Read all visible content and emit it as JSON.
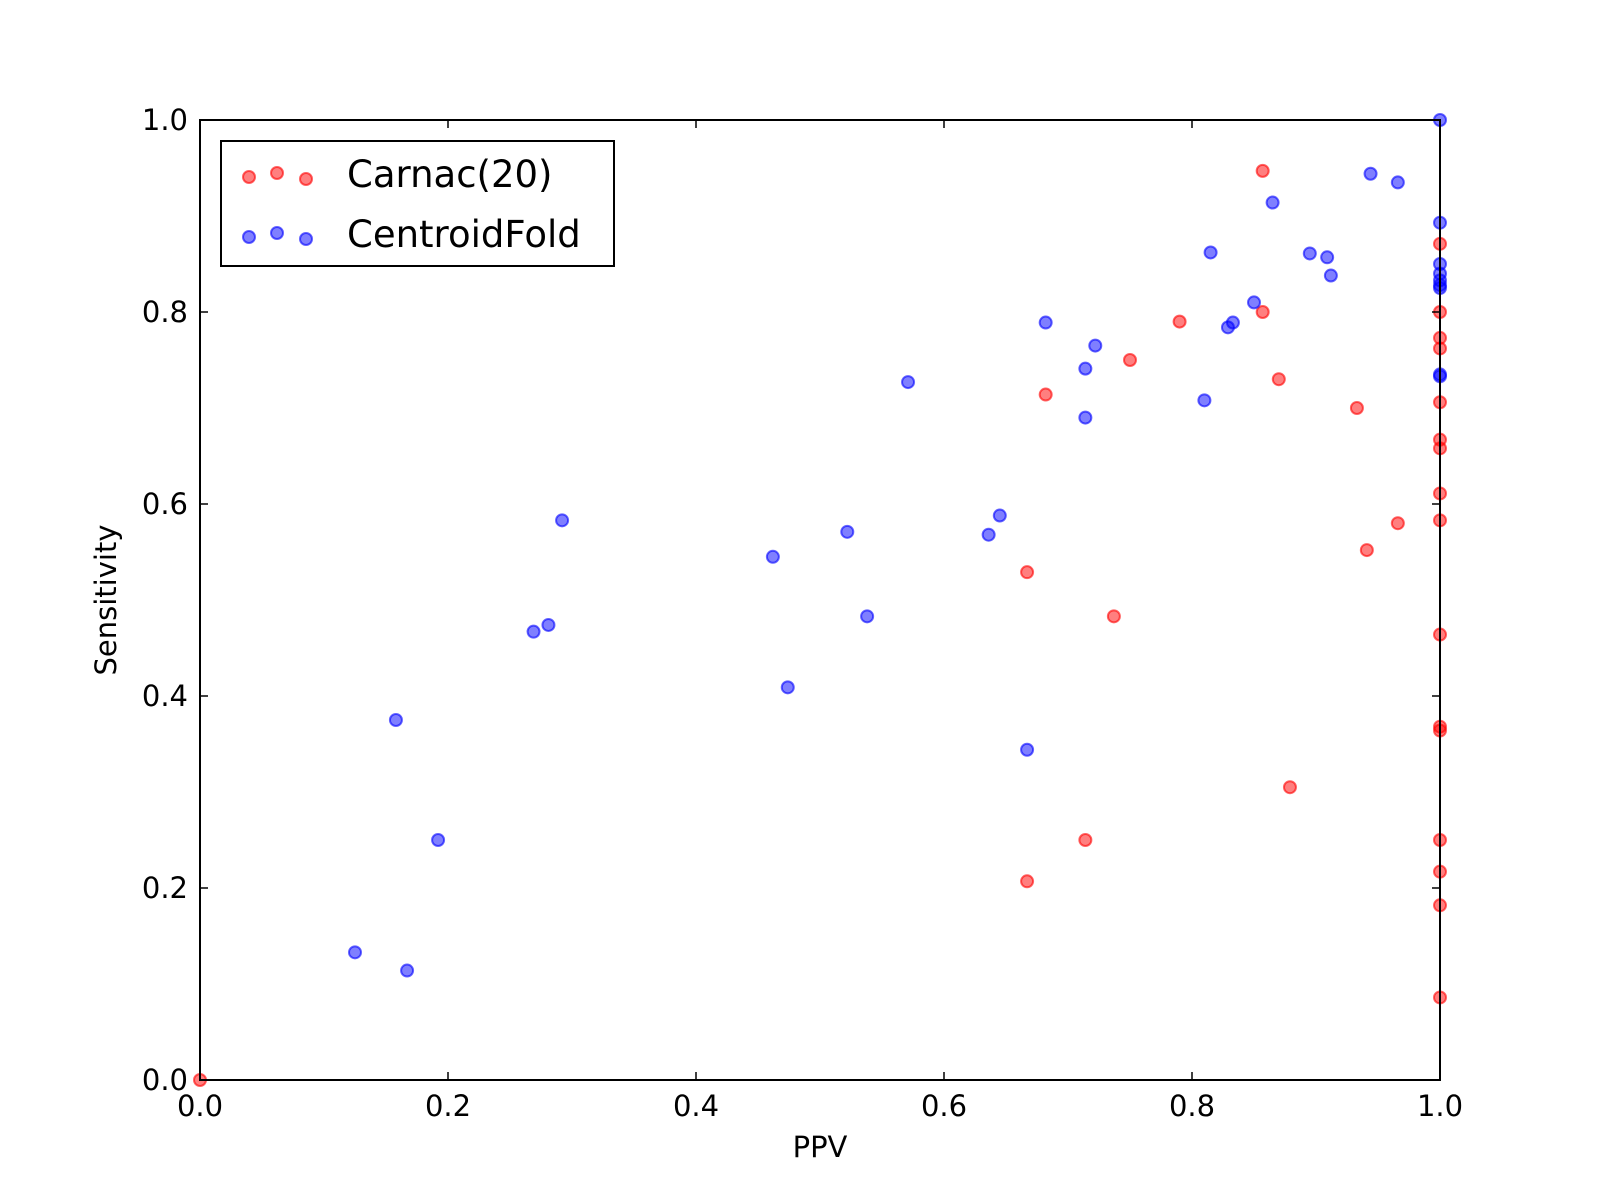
{
  "chart_data": {
    "type": "scatter",
    "title": "",
    "xlabel": "PPV",
    "ylabel": "Sensitivity",
    "xlim": [
      0.0,
      1.0
    ],
    "ylim": [
      0.0,
      1.0
    ],
    "xticks": [
      "0.0",
      "0.2",
      "0.4",
      "0.6",
      "0.8",
      "1.0"
    ],
    "yticks": [
      "0.0",
      "0.2",
      "0.4",
      "0.6",
      "0.8",
      "1.0"
    ],
    "grid": false,
    "legend_position": "top-left",
    "series": [
      {
        "name": "Carnac(20)",
        "color": "#ff0000",
        "points": [
          [
            0.0,
            0.0
          ],
          [
            0.667,
            0.207
          ],
          [
            0.667,
            0.529
          ],
          [
            0.682,
            0.714
          ],
          [
            0.714,
            0.25
          ],
          [
            0.737,
            0.483
          ],
          [
            0.75,
            0.75
          ],
          [
            0.79,
            0.79
          ],
          [
            0.857,
            0.947
          ],
          [
            0.857,
            0.8
          ],
          [
            0.87,
            0.73
          ],
          [
            0.879,
            0.305
          ],
          [
            0.933,
            0.7
          ],
          [
            0.941,
            0.552
          ],
          [
            0.966,
            0.58
          ],
          [
            1.0,
            0.871
          ],
          [
            1.0,
            0.8
          ],
          [
            1.0,
            0.773
          ],
          [
            1.0,
            0.762
          ],
          [
            1.0,
            0.706
          ],
          [
            1.0,
            0.667
          ],
          [
            1.0,
            0.658
          ],
          [
            1.0,
            0.611
          ],
          [
            1.0,
            0.583
          ],
          [
            1.0,
            0.464
          ],
          [
            1.0,
            0.368
          ],
          [
            1.0,
            0.364
          ],
          [
            1.0,
            0.25
          ],
          [
            1.0,
            0.217
          ],
          [
            1.0,
            0.182
          ],
          [
            1.0,
            0.086
          ]
        ]
      },
      {
        "name": "CentroidFold",
        "color": "#0000ff",
        "points": [
          [
            0.125,
            0.133
          ],
          [
            0.158,
            0.375
          ],
          [
            0.167,
            0.114
          ],
          [
            0.192,
            0.25
          ],
          [
            0.269,
            0.467
          ],
          [
            0.281,
            0.474
          ],
          [
            0.292,
            0.583
          ],
          [
            0.462,
            0.545
          ],
          [
            0.474,
            0.409
          ],
          [
            0.522,
            0.571
          ],
          [
            0.538,
            0.483
          ],
          [
            0.571,
            0.727
          ],
          [
            0.636,
            0.568
          ],
          [
            0.645,
            0.588
          ],
          [
            0.667,
            0.344
          ],
          [
            0.682,
            0.789
          ],
          [
            0.714,
            0.741
          ],
          [
            0.714,
            0.69
          ],
          [
            0.722,
            0.765
          ],
          [
            0.81,
            0.708
          ],
          [
            0.815,
            0.862
          ],
          [
            0.829,
            0.784
          ],
          [
            0.833,
            0.789
          ],
          [
            0.85,
            0.81
          ],
          [
            0.865,
            0.914
          ],
          [
            0.895,
            0.861
          ],
          [
            0.909,
            0.857
          ],
          [
            0.912,
            0.838
          ],
          [
            0.944,
            0.944
          ],
          [
            0.966,
            0.935
          ],
          [
            1.0,
            1.0
          ],
          [
            1.0,
            0.893
          ],
          [
            1.0,
            0.85
          ],
          [
            1.0,
            0.84
          ],
          [
            1.0,
            0.833
          ],
          [
            1.0,
            0.828
          ],
          [
            1.0,
            0.825
          ],
          [
            1.0,
            0.735
          ],
          [
            1.0,
            0.733
          ]
        ]
      }
    ]
  }
}
